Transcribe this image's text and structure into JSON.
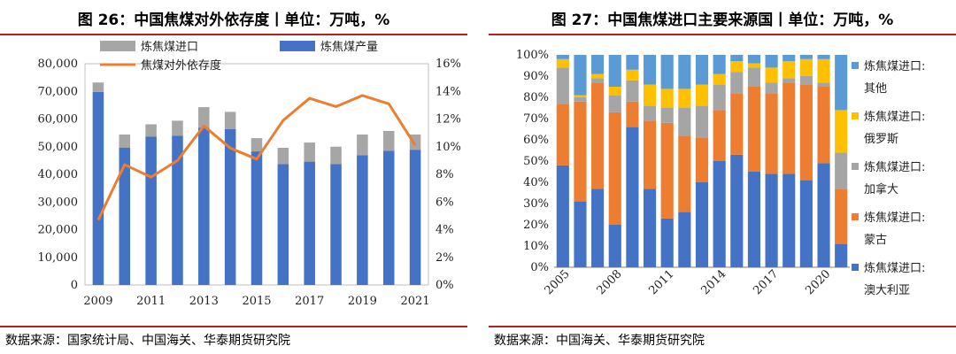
{
  "left": {
    "title": "图 26：中国焦煤对外依存度丨单位：万吨，%",
    "source": "数据来源：国家统计局、中国海关、华泰期货研究院"
  },
  "right": {
    "title": "图 27：中国焦煤进口主要来源国丨单位：万吨，%",
    "source": "数据来源：中国海关、华泰期货研究院"
  },
  "colors": {
    "import": "#a6a6a6",
    "production": "#4472c4",
    "dependence": "#ed7d31",
    "australia": "#4472c4",
    "mongolia": "#ed7d31",
    "canada": "#a5a5a5",
    "russia": "#ffc000",
    "other": "#5b9bd5",
    "rule": "#b32020"
  },
  "chart_data": [
    {
      "type": "bar",
      "stacked": true,
      "secondary_line": true,
      "x": [
        "2009",
        "2010",
        "2011",
        "2012",
        "2013",
        "2014",
        "2015",
        "2016",
        "2017",
        "2018",
        "2019",
        "2020",
        "2021"
      ],
      "xticks": [
        "2009",
        "2011",
        "2013",
        "2015",
        "2017",
        "2019",
        "2021"
      ],
      "ylim": [
        0,
        80000
      ],
      "yticks": [
        "0",
        "10,000",
        "20,000",
        "30,000",
        "40,000",
        "50,000",
        "60,000",
        "70,000",
        "80,000"
      ],
      "y2lim": [
        0,
        16
      ],
      "y2ticks": [
        "0%",
        "2%",
        "4%",
        "6%",
        "8%",
        "10%",
        "12%",
        "14%",
        "16%"
      ],
      "legend": [
        "炼焦煤进口",
        "炼焦煤产量",
        "焦煤对外依存度"
      ],
      "series": [
        {
          "name": "炼焦煤产量",
          "kind": "bar",
          "values": [
            69800,
            49600,
            53600,
            54000,
            56800,
            56400,
            48300,
            43700,
            44600,
            43700,
            46900,
            48500,
            48900
          ]
        },
        {
          "name": "炼焦煤进口",
          "kind": "bar",
          "values": [
            3400,
            4800,
            4500,
            5400,
            7500,
            6200,
            4800,
            5900,
            6900,
            6300,
            7500,
            7200,
            5500
          ]
        },
        {
          "name": "焦煤对外依存度",
          "kind": "line",
          "axis": "y2",
          "values": [
            4.7,
            8.7,
            7.8,
            9.0,
            11.5,
            9.9,
            9.1,
            11.9,
            13.5,
            12.9,
            13.7,
            13.1,
            10.1
          ]
        }
      ]
    },
    {
      "type": "bar",
      "stacked": true,
      "percent": true,
      "x": [
        "2005",
        "2006",
        "2007",
        "2008",
        "2009",
        "2010",
        "2011",
        "2012",
        "2013",
        "2014",
        "2015",
        "2016",
        "2017",
        "2018",
        "2019",
        "2020",
        "2021"
      ],
      "xticks": [
        "2005",
        "2008",
        "2011",
        "2014",
        "2017",
        "2020"
      ],
      "ylim": [
        0,
        100
      ],
      "yticks": [
        "0%",
        "10%",
        "20%",
        "30%",
        "40%",
        "50%",
        "60%",
        "70%",
        "80%",
        "90%",
        "100%"
      ],
      "legend": [
        {
          "line1": "炼焦煤进口:",
          "line2": "其他"
        },
        {
          "line1": "炼焦煤进口:",
          "line2": "俄罗斯"
        },
        {
          "line1": "炼焦煤进口:",
          "line2": "加拿大"
        },
        {
          "line1": "炼焦煤进口:",
          "line2": "蒙古"
        },
        {
          "line1": "炼焦煤进口:",
          "line2": "澳大利亚"
        }
      ],
      "series": [
        {
          "name": "炼焦煤进口:澳大利亚",
          "values": [
            48,
            31,
            37,
            20,
            66,
            37,
            23,
            26,
            40,
            50,
            53,
            45,
            44,
            44,
            41,
            49,
            11
          ]
        },
        {
          "name": "炼焦煤进口:蒙古",
          "values": [
            29,
            47,
            50,
            53,
            12,
            32,
            45,
            36,
            21,
            24,
            29,
            40,
            38,
            43,
            45,
            36,
            26
          ]
        },
        {
          "name": "炼焦煤进口:加拿大",
          "values": [
            17,
            2,
            2,
            8,
            10,
            7,
            7,
            13,
            15,
            12,
            10,
            9,
            5,
            2,
            4,
            2,
            17
          ]
        },
        {
          "name": "炼焦煤进口:俄罗斯",
          "values": [
            4,
            1,
            2,
            4,
            5,
            10,
            9,
            9,
            10,
            5,
            5,
            2,
            7,
            8,
            8,
            11,
            20
          ]
        },
        {
          "name": "炼焦煤进口:其他",
          "values": [
            2,
            19,
            9,
            15,
            7,
            14,
            16,
            16,
            14,
            9,
            3,
            4,
            6,
            3,
            2,
            2,
            26
          ]
        }
      ]
    }
  ]
}
